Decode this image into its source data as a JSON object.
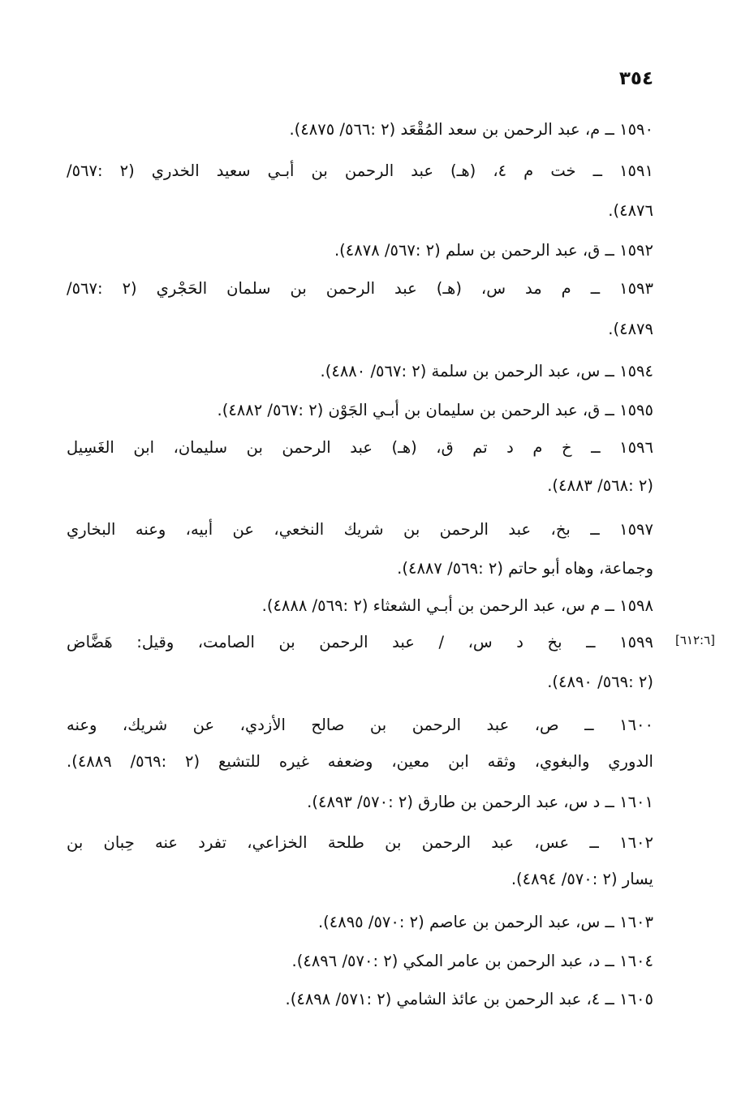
{
  "page_number": "٣٥٤",
  "margin_note": "[٦١٢:٦]",
  "entries": [
    {
      "lines": [
        "١٥٩٠ ــ م، عبد الرحمن بن سعد المُقْعَد (٢ :٥٦٦/ ٤٨٧٥)."
      ]
    },
    {
      "lines": [
        "١٥٩١ ــ خت م ٤، (هـ) عبد الرحمن بن أبـي سعيد الخدري (٢ :٥٦٧/",
        "٤٨٧٦)."
      ]
    },
    {
      "lines": [
        "١٥٩٢ ــ ق، عبد الرحمن بن سلم (٢ :٥٦٧/ ٤٨٧٨)."
      ]
    },
    {
      "lines": [
        "١٥٩٣ ــ م مد س، (هـ) عبد الرحمن بن سلمان الحَجْري (٢ :٥٦٧/",
        "٤٨٧٩)."
      ]
    },
    {
      "lines": [
        "١٥٩٤ ــ س، عبد الرحمن بن سلمة (٢ :٥٦٧/ ٤٨٨٠)."
      ]
    },
    {
      "lines": [
        "١٥٩٥ ــ ق، عبد الرحمن بن سليمان بن أبـي الجَوْن (٢ :٥٦٧/ ٤٨٨٢)."
      ]
    },
    {
      "lines": [
        "١٥٩٦ ــ خ م د تم ق، (هـ) عبد الرحمن بن سليمان، ابن الغَسِيل",
        "(٢ :٥٦٨/ ٤٨٨٣)."
      ]
    },
    {
      "lines": [
        "١٥٩٧ ــ بخ، عبد الرحمن بن شريك النخعي، عن أبيه، وعنه البخاري",
        "وجماعة، وهاه أبو حاتم (٢ :٥٦٩/ ٤٨٨٧)."
      ]
    },
    {
      "lines": [
        "١٥٩٨ ــ م س، عبد الرحمن بن أبـي الشعثاء (٢ :٥٦٩/ ٤٨٨٨)."
      ]
    },
    {
      "lines": [
        "١٥٩٩ ــ بخ د س، / عبد الرحمن بن الصامت، وقيل: هَضَّاض",
        "(٢ :٥٦٩/ ٤٨٩٠)."
      ]
    },
    {
      "lines": [
        "١٦٠٠ ــ ص، عبد الرحمن بن صالح الأزدي، عن شريك، وعنه",
        "الدوري والبغوي، وثقه ابن معين، وضعفه غيره للتشيع (٢ :٥٦٩/ ٤٨٨٩)."
      ]
    },
    {
      "lines": [
        "١٦٠١ ــ د س، عبد الرحمن بن طارق (٢ :٥٧٠/ ٤٨٩٣)."
      ]
    },
    {
      "lines": [
        "١٦٠٢ ــ عس، عبد الرحمن بن طلحة الخزاعي، تفرد عنه حِبان بن",
        "يسار (٢ :٥٧٠/ ٤٨٩٤)."
      ]
    },
    {
      "lines": [
        "١٦٠٣ ــ س، عبد الرحمن بن عاصم (٢ :٥٧٠/ ٤٨٩٥)."
      ]
    },
    {
      "lines": [
        "١٦٠٤ ــ د، عبد الرحمن بن عامر المكي (٢ :٥٧٠/ ٤٨٩٦)."
      ]
    },
    {
      "lines": [
        "١٦٠٥ ــ ٤، عبد الرحمن بن عائذ الشامي (٢ :٥٧١/ ٤٨٩٨)."
      ]
    }
  ]
}
